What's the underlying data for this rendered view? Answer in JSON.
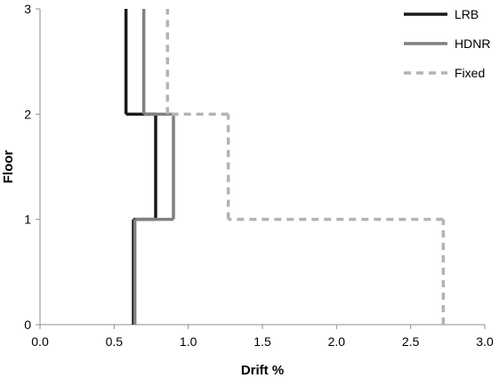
{
  "chart_data": {
    "type": "line",
    "title": "",
    "xlabel": "Drift %",
    "ylabel": "Floor",
    "xlim": [
      0.0,
      3.0
    ],
    "ylim": [
      0,
      3
    ],
    "x_ticks": [
      "0.0",
      "0.5",
      "1.0",
      "1.5",
      "2.0",
      "2.5",
      "3.0"
    ],
    "y_ticks": [
      "0",
      "1",
      "2",
      "3"
    ],
    "grid": false,
    "legend_position": "top-right",
    "series": [
      {
        "name": "LRB",
        "style": "solid",
        "color": "#1a1a1a",
        "steps": [
          {
            "floor_from": 0,
            "floor_to": 1,
            "drift": 0.63
          },
          {
            "floor_from": 1,
            "floor_to": 2,
            "drift": 0.78
          },
          {
            "floor_from": 2,
            "floor_to": 3,
            "drift": 0.58
          }
        ]
      },
      {
        "name": "HDNR",
        "style": "solid",
        "color": "#808080",
        "steps": [
          {
            "floor_from": 0,
            "floor_to": 1,
            "drift": 0.64
          },
          {
            "floor_from": 1,
            "floor_to": 2,
            "drift": 0.9
          },
          {
            "floor_from": 2,
            "floor_to": 3,
            "drift": 0.7
          }
        ]
      },
      {
        "name": "Fixed",
        "style": "dashed",
        "color": "#b3b3b3",
        "steps": [
          {
            "floor_from": 0,
            "floor_to": 1,
            "drift": 2.72
          },
          {
            "floor_from": 1,
            "floor_to": 2,
            "drift": 1.27
          },
          {
            "floor_from": 2,
            "floor_to": 3,
            "drift": 0.86
          }
        ]
      }
    ]
  }
}
